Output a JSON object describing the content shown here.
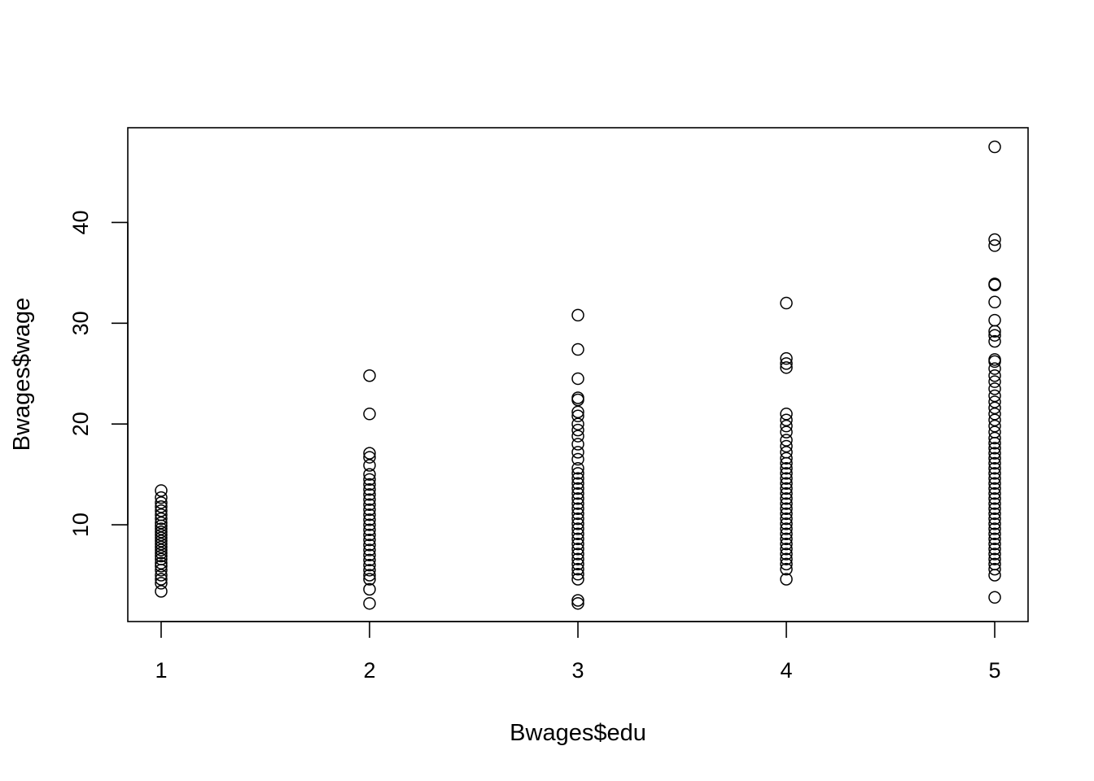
{
  "chart_data": {
    "type": "scatter",
    "title": "",
    "xlabel": "Bwages$edu",
    "ylabel": "Bwages$wage",
    "xlim": [
      0.84,
      5.16
    ],
    "ylim": [
      0.4,
      49.4
    ],
    "x_ticks": [
      1,
      2,
      3,
      4,
      5
    ],
    "x_tick_labels": [
      "1",
      "2",
      "3",
      "4",
      "5"
    ],
    "y_ticks": [
      10,
      20,
      30,
      40
    ],
    "y_tick_labels": [
      "10",
      "20",
      "30",
      "40"
    ],
    "grid": false,
    "legend": "none",
    "series": [
      {
        "points": [
          [
            1,
            3.4
          ],
          [
            1,
            4.2
          ],
          [
            1,
            4.6
          ],
          [
            1,
            5.0
          ],
          [
            1,
            5.5
          ],
          [
            1,
            5.9
          ],
          [
            1,
            6.2
          ],
          [
            1,
            6.6
          ],
          [
            1,
            6.9
          ],
          [
            1,
            7.2
          ],
          [
            1,
            7.5
          ],
          [
            1,
            7.8
          ],
          [
            1,
            8.1
          ],
          [
            1,
            8.4
          ],
          [
            1,
            8.7
          ],
          [
            1,
            9.0
          ],
          [
            1,
            9.3
          ],
          [
            1,
            9.6
          ],
          [
            1,
            9.9
          ],
          [
            1,
            10.2
          ],
          [
            1,
            10.6
          ],
          [
            1,
            11.0
          ],
          [
            1,
            11.4
          ],
          [
            1,
            11.8
          ],
          [
            1,
            12.2
          ],
          [
            1,
            12.7
          ],
          [
            1,
            13.4
          ],
          [
            2,
            2.2
          ],
          [
            2,
            3.6
          ],
          [
            2,
            4.6
          ],
          [
            2,
            5.0
          ],
          [
            2,
            5.5
          ],
          [
            2,
            6.0
          ],
          [
            2,
            6.5
          ],
          [
            2,
            7.0
          ],
          [
            2,
            7.5
          ],
          [
            2,
            8.0
          ],
          [
            2,
            8.5
          ],
          [
            2,
            9.0
          ],
          [
            2,
            9.5
          ],
          [
            2,
            10.0
          ],
          [
            2,
            10.5
          ],
          [
            2,
            11.0
          ],
          [
            2,
            11.5
          ],
          [
            2,
            12.0
          ],
          [
            2,
            12.5
          ],
          [
            2,
            13.0
          ],
          [
            2,
            13.5
          ],
          [
            2,
            14.0
          ],
          [
            2,
            14.5
          ],
          [
            2,
            15.0
          ],
          [
            2,
            15.9
          ],
          [
            2,
            16.7
          ],
          [
            2,
            17.1
          ],
          [
            2,
            21.0
          ],
          [
            2,
            24.8
          ],
          [
            3,
            2.2
          ],
          [
            3,
            2.5
          ],
          [
            3,
            4.6
          ],
          [
            3,
            5.1
          ],
          [
            3,
            5.6
          ],
          [
            3,
            6.1
          ],
          [
            3,
            6.6
          ],
          [
            3,
            7.1
          ],
          [
            3,
            7.6
          ],
          [
            3,
            8.1
          ],
          [
            3,
            8.6
          ],
          [
            3,
            9.1
          ],
          [
            3,
            9.6
          ],
          [
            3,
            10.1
          ],
          [
            3,
            10.6
          ],
          [
            3,
            11.1
          ],
          [
            3,
            11.6
          ],
          [
            3,
            12.1
          ],
          [
            3,
            12.6
          ],
          [
            3,
            13.1
          ],
          [
            3,
            13.6
          ],
          [
            3,
            14.1
          ],
          [
            3,
            14.6
          ],
          [
            3,
            15.1
          ],
          [
            3,
            15.6
          ],
          [
            3,
            16.5
          ],
          [
            3,
            17.2
          ],
          [
            3,
            18.0
          ],
          [
            3,
            18.8
          ],
          [
            3,
            19.4
          ],
          [
            3,
            20.0
          ],
          [
            3,
            20.8
          ],
          [
            3,
            21.2
          ],
          [
            3,
            22.4
          ],
          [
            3,
            22.6
          ],
          [
            3,
            24.5
          ],
          [
            3,
            27.4
          ],
          [
            3,
            30.8
          ],
          [
            4,
            4.6
          ],
          [
            4,
            5.6
          ],
          [
            4,
            6.1
          ],
          [
            4,
            6.6
          ],
          [
            4,
            7.1
          ],
          [
            4,
            7.6
          ],
          [
            4,
            8.1
          ],
          [
            4,
            8.6
          ],
          [
            4,
            9.1
          ],
          [
            4,
            9.6
          ],
          [
            4,
            10.1
          ],
          [
            4,
            10.6
          ],
          [
            4,
            11.1
          ],
          [
            4,
            11.6
          ],
          [
            4,
            12.1
          ],
          [
            4,
            12.6
          ],
          [
            4,
            13.1
          ],
          [
            4,
            13.6
          ],
          [
            4,
            14.1
          ],
          [
            4,
            14.6
          ],
          [
            4,
            15.1
          ],
          [
            4,
            15.6
          ],
          [
            4,
            16.1
          ],
          [
            4,
            16.6
          ],
          [
            4,
            17.2
          ],
          [
            4,
            17.8
          ],
          [
            4,
            18.4
          ],
          [
            4,
            19.2
          ],
          [
            4,
            19.8
          ],
          [
            4,
            20.4
          ],
          [
            4,
            21.0
          ],
          [
            4,
            25.6
          ],
          [
            4,
            26.0
          ],
          [
            4,
            26.5
          ],
          [
            4,
            32.0
          ],
          [
            5,
            2.8
          ],
          [
            5,
            5.0
          ],
          [
            5,
            5.6
          ],
          [
            5,
            6.1
          ],
          [
            5,
            6.6
          ],
          [
            5,
            7.1
          ],
          [
            5,
            7.6
          ],
          [
            5,
            8.1
          ],
          [
            5,
            8.6
          ],
          [
            5,
            9.1
          ],
          [
            5,
            9.6
          ],
          [
            5,
            10.1
          ],
          [
            5,
            10.6
          ],
          [
            5,
            11.1
          ],
          [
            5,
            11.6
          ],
          [
            5,
            12.1
          ],
          [
            5,
            12.6
          ],
          [
            5,
            13.1
          ],
          [
            5,
            13.6
          ],
          [
            5,
            14.1
          ],
          [
            5,
            14.6
          ],
          [
            5,
            15.1
          ],
          [
            5,
            15.6
          ],
          [
            5,
            16.1
          ],
          [
            5,
            16.6
          ],
          [
            5,
            17.1
          ],
          [
            5,
            17.6
          ],
          [
            5,
            18.1
          ],
          [
            5,
            18.6
          ],
          [
            5,
            19.2
          ],
          [
            5,
            19.8
          ],
          [
            5,
            20.4
          ],
          [
            5,
            21.0
          ],
          [
            5,
            21.6
          ],
          [
            5,
            22.2
          ],
          [
            5,
            22.8
          ],
          [
            5,
            23.5
          ],
          [
            5,
            24.2
          ],
          [
            5,
            24.8
          ],
          [
            5,
            25.5
          ],
          [
            5,
            26.2
          ],
          [
            5,
            26.4
          ],
          [
            5,
            28.2
          ],
          [
            5,
            28.8
          ],
          [
            5,
            29.2
          ],
          [
            5,
            30.3
          ],
          [
            5,
            32.1
          ],
          [
            5,
            33.8
          ],
          [
            5,
            33.9
          ],
          [
            5,
            37.7
          ],
          [
            5,
            38.3
          ],
          [
            5,
            47.5
          ]
        ]
      }
    ]
  }
}
